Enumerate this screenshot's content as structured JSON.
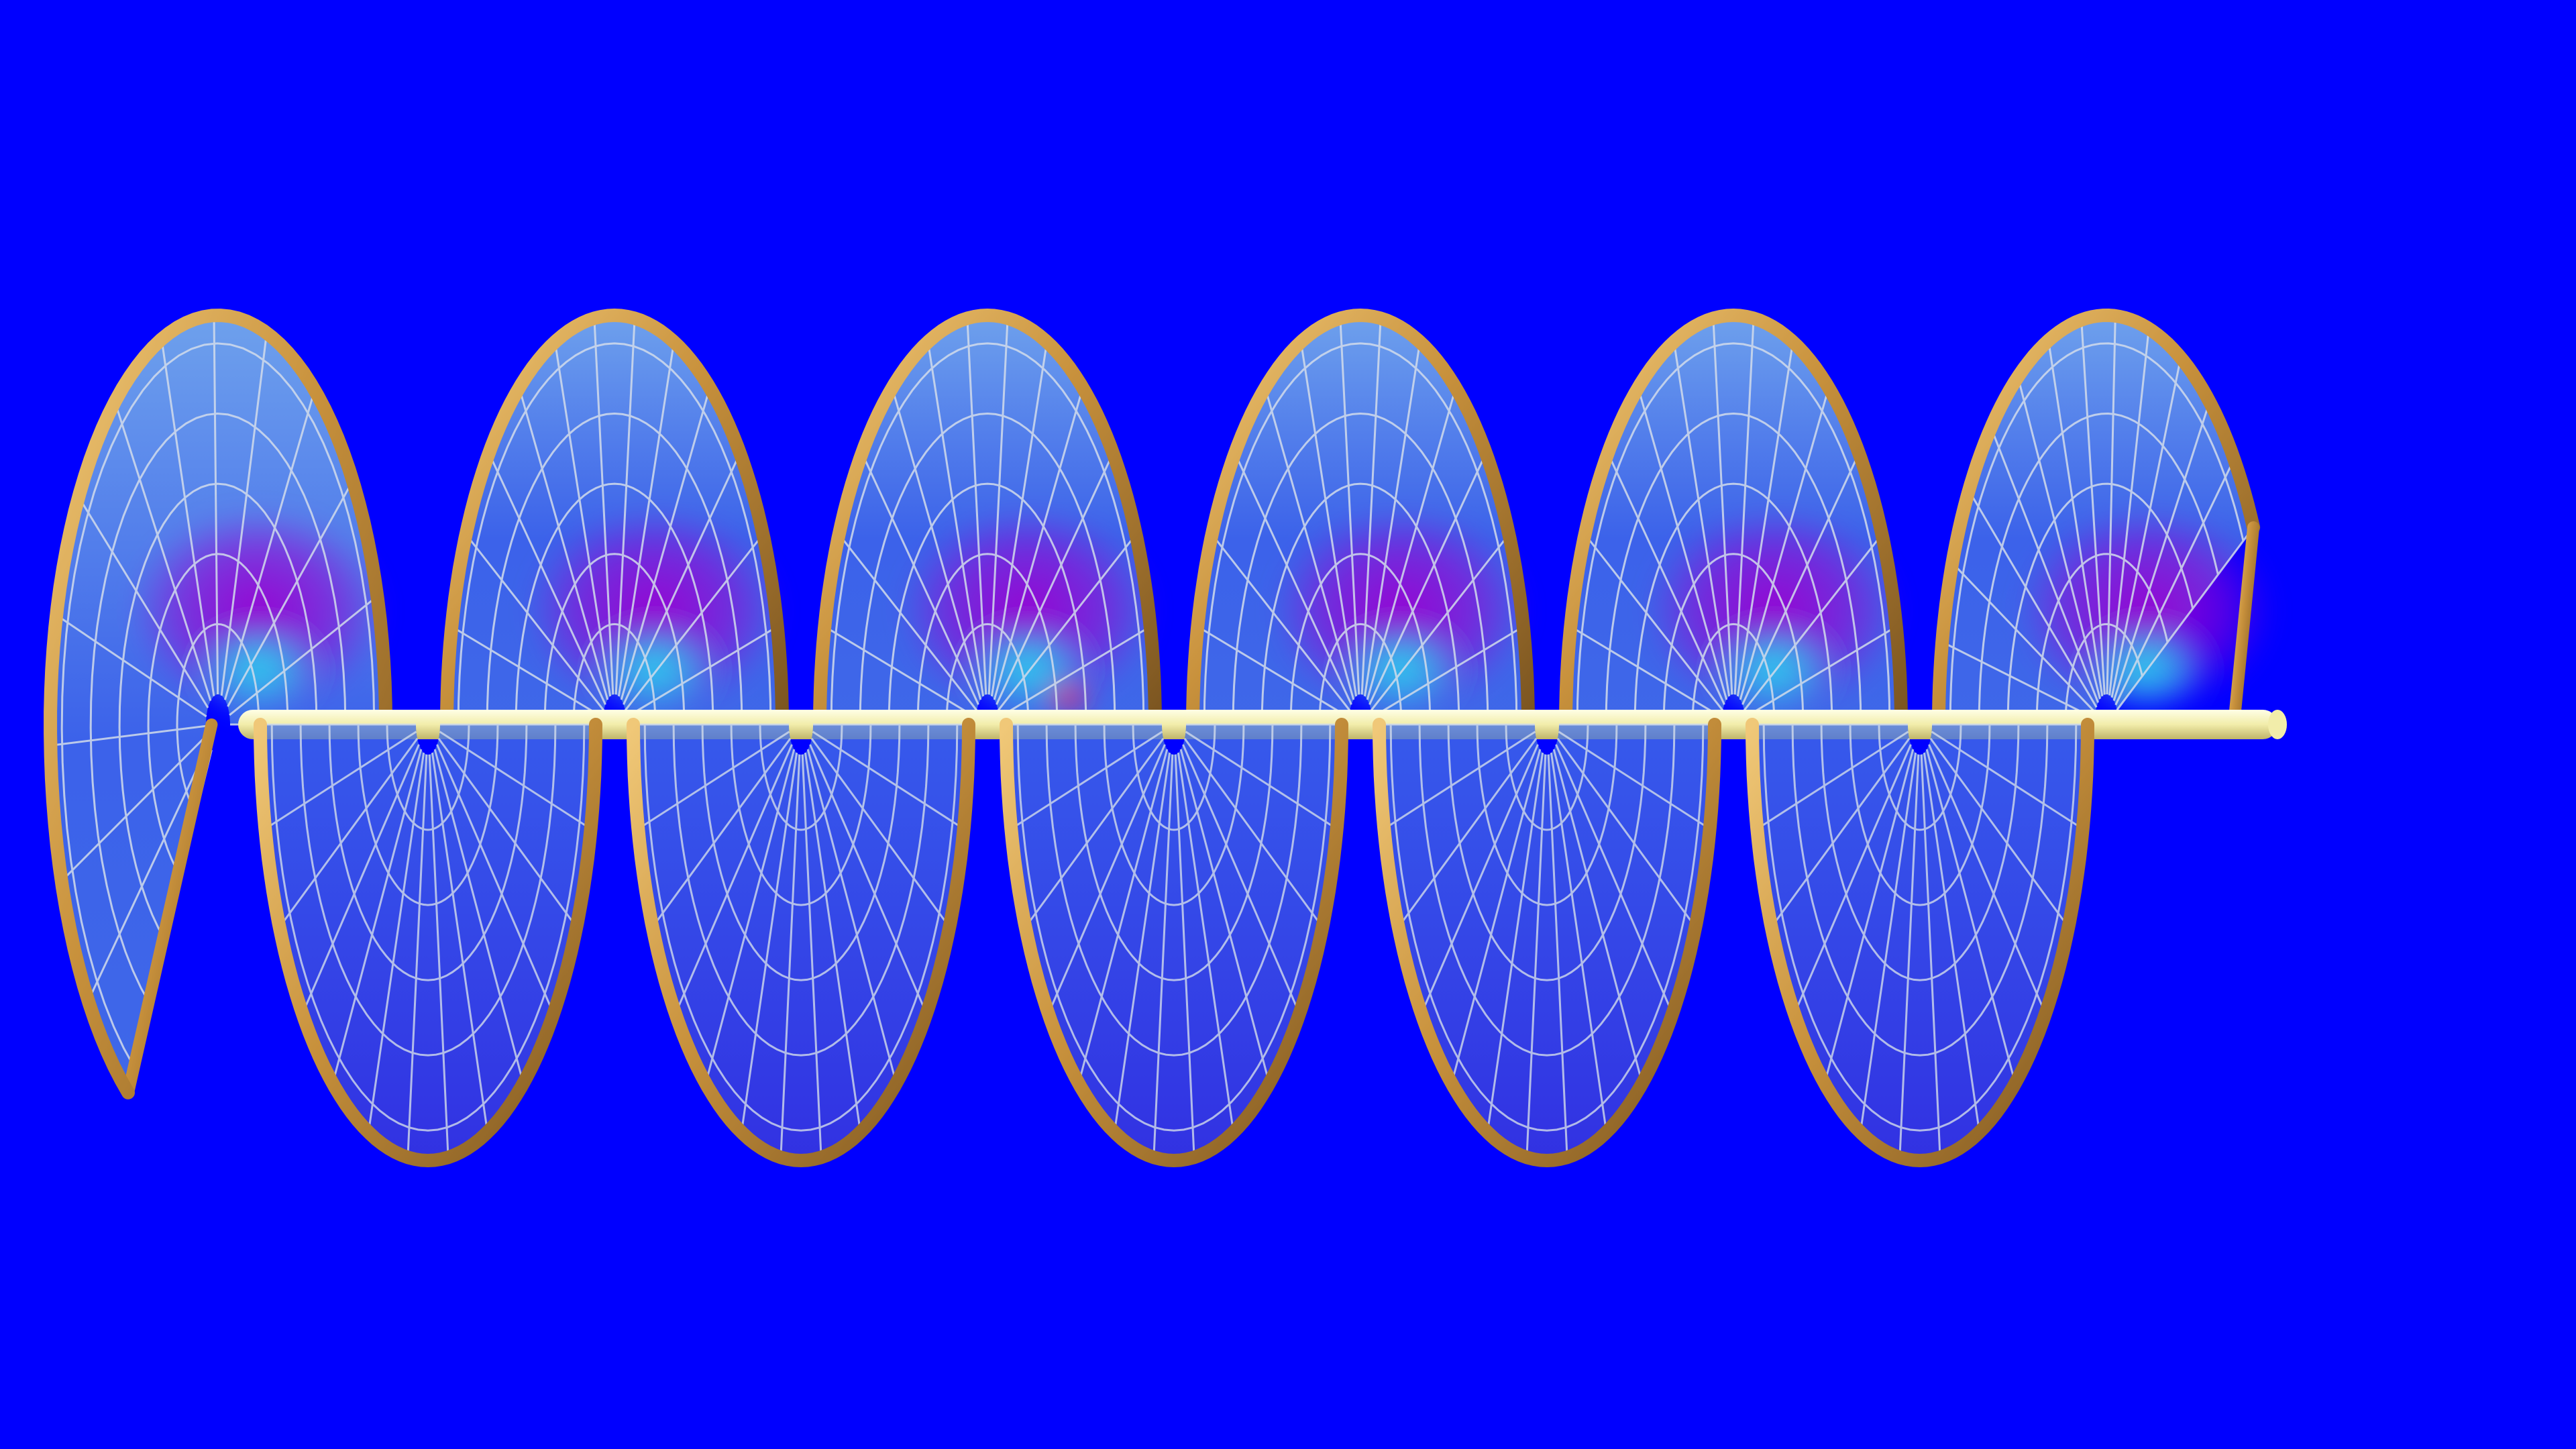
{
  "scene": {
    "subject": "helical-screw-with-shaft",
    "colors": {
      "background": "#0000FF",
      "rim": "#C8913C",
      "rim_highlight": "#F0C878",
      "rim_shadow": "#7A5420",
      "shaft": "#F2EDAA",
      "shaft_shadow": "#BFB46A",
      "shaft_highlight": "#FFFFE6",
      "mesh_line": "#D2DCEB",
      "surface_light": "#78AFEB",
      "surface_mid": "#4673E6",
      "surface_deep": "#3C3CDC",
      "hot_magenta": "#9B00D2",
      "hot_cyan": "#28D2F0",
      "hot_red": "#F01E6E"
    },
    "turns": 6,
    "mesh": {
      "radial_spokes": 13,
      "circumferential_rings": 5
    }
  }
}
